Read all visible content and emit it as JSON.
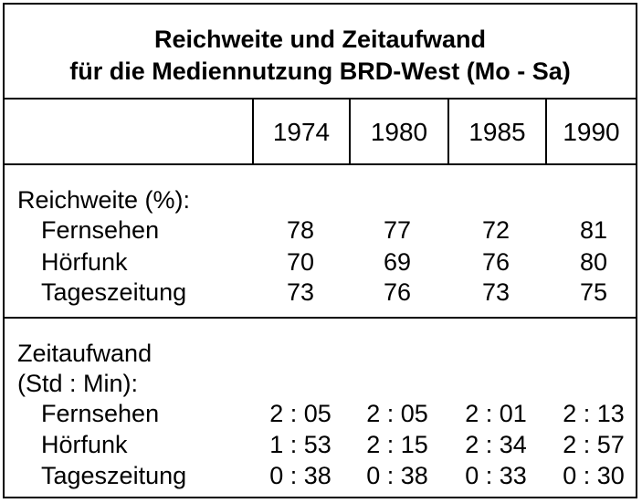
{
  "title": {
    "line1": "Reichweite und Zeitaufwand",
    "line2": "für die Mediennutzung BRD-West (Mo - Sa)"
  },
  "years": [
    "1974",
    "1980",
    "1985",
    "1990"
  ],
  "reichweite": {
    "heading": "Reichweite (%):",
    "rows": [
      {
        "label": "Fernsehen",
        "values": [
          "78",
          "77",
          "72",
          "81"
        ]
      },
      {
        "label": "Hörfunk",
        "values": [
          "70",
          "69",
          "76",
          "80"
        ]
      },
      {
        "label": "Tageszeitung",
        "values": [
          "73",
          "76",
          "73",
          "75"
        ]
      }
    ]
  },
  "zeitaufwand": {
    "heading_line1": "Zeitaufwand",
    "heading_line2": "(Std : Min):",
    "rows": [
      {
        "label": "Fernsehen",
        "values": [
          "2 : 05",
          "2 : 05",
          "2 : 01",
          "2 : 13"
        ]
      },
      {
        "label": "Hörfunk",
        "values": [
          "1 : 53",
          "2 : 15",
          "2 : 34",
          "2 : 57"
        ]
      },
      {
        "label": "Tageszeitung",
        "values": [
          "0 : 38",
          "0 : 38",
          "0 : 33",
          "0 : 30"
        ]
      }
    ]
  }
}
